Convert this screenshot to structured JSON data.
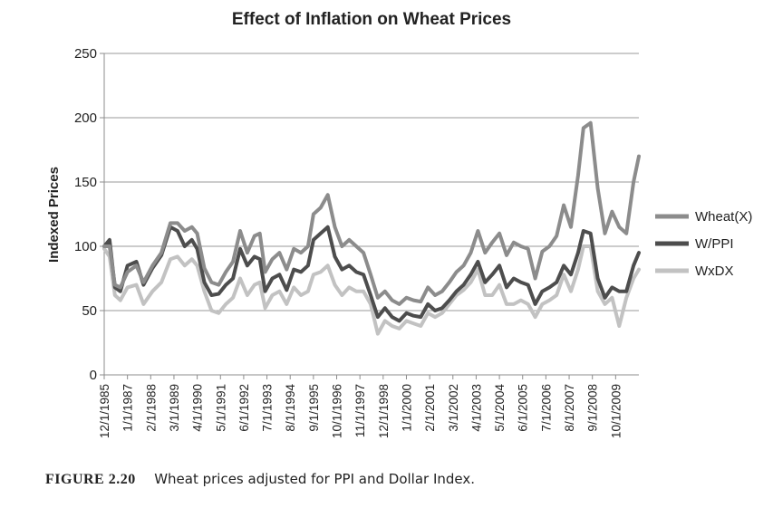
{
  "chart_data": {
    "type": "line",
    "title": "Effect of Inflation on Wheat Prices",
    "xlabel": "",
    "ylabel": "Indexed Prices",
    "ylim": [
      0,
      250
    ],
    "yticks": [
      0,
      50,
      100,
      150,
      200,
      250
    ],
    "grid": "horizontal",
    "legend_position": "right",
    "x_tick_labels": [
      "12/1/1985",
      "1/1/1987",
      "2/1/1988",
      "3/1/1989",
      "4/1/1990",
      "5/1/1991",
      "6/1/1992",
      "7/1/1993",
      "8/1/1994",
      "9/1/1995",
      "10/1/1996",
      "11/1/1997",
      "12/1/1998",
      "1/1/2000",
      "2/1/2001",
      "3/1/2002",
      "4/1/2003",
      "5/1/2004",
      "6/1/2005",
      "7/1/2006",
      "8/1/2007",
      "9/1/2008",
      "10/1/2009"
    ],
    "x_range": [
      "1985-12",
      "2010-11"
    ],
    "series": [
      {
        "name": "Wheat(X)",
        "color": "#8c8c8c",
        "points": [
          [
            "1985-12",
            100
          ],
          [
            "1986-03",
            100
          ],
          [
            "1986-06",
            70
          ],
          [
            "1986-09",
            68
          ],
          [
            "1987-01",
            80
          ],
          [
            "1987-06",
            85
          ],
          [
            "1987-10",
            72
          ],
          [
            "1988-03",
            85
          ],
          [
            "1988-08",
            95
          ],
          [
            "1989-01",
            118
          ],
          [
            "1989-05",
            118
          ],
          [
            "1989-09",
            112
          ],
          [
            "1990-01",
            115
          ],
          [
            "1990-04",
            110
          ],
          [
            "1990-08",
            83
          ],
          [
            "1990-12",
            72
          ],
          [
            "1991-04",
            70
          ],
          [
            "1991-08",
            80
          ],
          [
            "1991-12",
            88
          ],
          [
            "1992-04",
            112
          ],
          [
            "1992-08",
            95
          ],
          [
            "1992-12",
            108
          ],
          [
            "1993-03",
            110
          ],
          [
            "1993-06",
            80
          ],
          [
            "1993-10",
            90
          ],
          [
            "1994-02",
            95
          ],
          [
            "1994-06",
            82
          ],
          [
            "1994-10",
            98
          ],
          [
            "1995-02",
            95
          ],
          [
            "1995-06",
            100
          ],
          [
            "1995-09",
            125
          ],
          [
            "1996-01",
            130
          ],
          [
            "1996-05",
            140
          ],
          [
            "1996-09",
            115
          ],
          [
            "1997-01",
            100
          ],
          [
            "1997-05",
            105
          ],
          [
            "1997-09",
            100
          ],
          [
            "1998-01",
            95
          ],
          [
            "1998-05",
            78
          ],
          [
            "1998-09",
            60
          ],
          [
            "1999-01",
            65
          ],
          [
            "1999-05",
            58
          ],
          [
            "1999-09",
            55
          ],
          [
            "2000-01",
            60
          ],
          [
            "2000-05",
            58
          ],
          [
            "2000-09",
            57
          ],
          [
            "2001-01",
            68
          ],
          [
            "2001-05",
            62
          ],
          [
            "2001-09",
            65
          ],
          [
            "2002-01",
            72
          ],
          [
            "2002-05",
            80
          ],
          [
            "2002-09",
            85
          ],
          [
            "2003-01",
            95
          ],
          [
            "2003-05",
            112
          ],
          [
            "2003-09",
            95
          ],
          [
            "2004-01",
            103
          ],
          [
            "2004-05",
            110
          ],
          [
            "2004-09",
            93
          ],
          [
            "2005-01",
            103
          ],
          [
            "2005-05",
            100
          ],
          [
            "2005-09",
            98
          ],
          [
            "2006-01",
            75
          ],
          [
            "2006-05",
            96
          ],
          [
            "2006-09",
            100
          ],
          [
            "2007-01",
            108
          ],
          [
            "2007-05",
            132
          ],
          [
            "2007-09",
            115
          ],
          [
            "2008-01",
            155
          ],
          [
            "2008-04",
            192
          ],
          [
            "2008-08",
            196
          ],
          [
            "2008-12",
            145
          ],
          [
            "2009-04",
            110
          ],
          [
            "2009-08",
            127
          ],
          [
            "2009-12",
            115
          ],
          [
            "2010-04",
            110
          ],
          [
            "2010-08",
            150
          ],
          [
            "2010-11",
            170
          ]
        ]
      },
      {
        "name": "W/PPI",
        "color": "#4d4d4d",
        "points": [
          [
            "1985-12",
            100
          ],
          [
            "1986-03",
            105
          ],
          [
            "1986-06",
            68
          ],
          [
            "1986-09",
            65
          ],
          [
            "1987-01",
            85
          ],
          [
            "1987-06",
            88
          ],
          [
            "1987-10",
            70
          ],
          [
            "1988-03",
            83
          ],
          [
            "1988-08",
            93
          ],
          [
            "1989-01",
            115
          ],
          [
            "1989-05",
            112
          ],
          [
            "1989-09",
            100
          ],
          [
            "1990-01",
            105
          ],
          [
            "1990-04",
            98
          ],
          [
            "1990-08",
            72
          ],
          [
            "1990-12",
            62
          ],
          [
            "1991-04",
            63
          ],
          [
            "1991-08",
            70
          ],
          [
            "1991-12",
            75
          ],
          [
            "1992-04",
            98
          ],
          [
            "1992-08",
            85
          ],
          [
            "1992-12",
            92
          ],
          [
            "1993-03",
            90
          ],
          [
            "1993-06",
            65
          ],
          [
            "1993-10",
            75
          ],
          [
            "1994-02",
            78
          ],
          [
            "1994-06",
            66
          ],
          [
            "1994-10",
            82
          ],
          [
            "1995-02",
            80
          ],
          [
            "1995-06",
            85
          ],
          [
            "1995-09",
            105
          ],
          [
            "1996-01",
            110
          ],
          [
            "1996-05",
            115
          ],
          [
            "1996-09",
            92
          ],
          [
            "1997-01",
            82
          ],
          [
            "1997-05",
            85
          ],
          [
            "1997-09",
            80
          ],
          [
            "1998-01",
            78
          ],
          [
            "1998-05",
            62
          ],
          [
            "1998-09",
            45
          ],
          [
            "1999-01",
            52
          ],
          [
            "1999-05",
            45
          ],
          [
            "1999-09",
            42
          ],
          [
            "2000-01",
            48
          ],
          [
            "2000-05",
            46
          ],
          [
            "2000-09",
            45
          ],
          [
            "2001-01",
            55
          ],
          [
            "2001-05",
            50
          ],
          [
            "2001-09",
            52
          ],
          [
            "2002-01",
            58
          ],
          [
            "2002-05",
            65
          ],
          [
            "2002-09",
            70
          ],
          [
            "2003-01",
            78
          ],
          [
            "2003-05",
            88
          ],
          [
            "2003-09",
            72
          ],
          [
            "2004-01",
            78
          ],
          [
            "2004-05",
            85
          ],
          [
            "2004-09",
            68
          ],
          [
            "2005-01",
            75
          ],
          [
            "2005-05",
            72
          ],
          [
            "2005-09",
            70
          ],
          [
            "2006-01",
            55
          ],
          [
            "2006-05",
            65
          ],
          [
            "2006-09",
            68
          ],
          [
            "2007-01",
            72
          ],
          [
            "2007-05",
            85
          ],
          [
            "2007-09",
            78
          ],
          [
            "2008-01",
            95
          ],
          [
            "2008-04",
            112
          ],
          [
            "2008-08",
            110
          ],
          [
            "2008-12",
            75
          ],
          [
            "2009-04",
            60
          ],
          [
            "2009-08",
            68
          ],
          [
            "2009-12",
            65
          ],
          [
            "2010-04",
            65
          ],
          [
            "2010-08",
            85
          ],
          [
            "2010-11",
            95
          ]
        ]
      },
      {
        "name": "WxDX",
        "color": "#c2c2c2",
        "points": [
          [
            "1985-12",
            98
          ],
          [
            "1986-03",
            92
          ],
          [
            "1986-06",
            62
          ],
          [
            "1986-09",
            58
          ],
          [
            "1987-01",
            68
          ],
          [
            "1987-06",
            70
          ],
          [
            "1987-10",
            55
          ],
          [
            "1988-03",
            65
          ],
          [
            "1988-08",
            72
          ],
          [
            "1989-01",
            90
          ],
          [
            "1989-05",
            92
          ],
          [
            "1989-09",
            85
          ],
          [
            "1990-01",
            90
          ],
          [
            "1990-04",
            85
          ],
          [
            "1990-08",
            65
          ],
          [
            "1990-12",
            50
          ],
          [
            "1991-04",
            48
          ],
          [
            "1991-08",
            55
          ],
          [
            "1991-12",
            60
          ],
          [
            "1992-04",
            75
          ],
          [
            "1992-08",
            62
          ],
          [
            "1992-12",
            70
          ],
          [
            "1993-03",
            72
          ],
          [
            "1993-06",
            52
          ],
          [
            "1993-10",
            62
          ],
          [
            "1994-02",
            65
          ],
          [
            "1994-06",
            55
          ],
          [
            "1994-10",
            68
          ],
          [
            "1995-02",
            62
          ],
          [
            "1995-06",
            65
          ],
          [
            "1995-09",
            78
          ],
          [
            "1996-01",
            80
          ],
          [
            "1996-05",
            85
          ],
          [
            "1996-09",
            70
          ],
          [
            "1997-01",
            62
          ],
          [
            "1997-05",
            68
          ],
          [
            "1997-09",
            65
          ],
          [
            "1998-01",
            65
          ],
          [
            "1998-05",
            55
          ],
          [
            "1998-09",
            32
          ],
          [
            "1999-01",
            42
          ],
          [
            "1999-05",
            38
          ],
          [
            "1999-09",
            36
          ],
          [
            "2000-01",
            42
          ],
          [
            "2000-05",
            40
          ],
          [
            "2000-09",
            38
          ],
          [
            "2001-01",
            48
          ],
          [
            "2001-05",
            45
          ],
          [
            "2001-09",
            48
          ],
          [
            "2002-01",
            55
          ],
          [
            "2002-05",
            62
          ],
          [
            "2002-09",
            66
          ],
          [
            "2003-01",
            72
          ],
          [
            "2003-05",
            82
          ],
          [
            "2003-09",
            62
          ],
          [
            "2004-01",
            62
          ],
          [
            "2004-05",
            70
          ],
          [
            "2004-09",
            55
          ],
          [
            "2005-01",
            55
          ],
          [
            "2005-05",
            58
          ],
          [
            "2005-09",
            55
          ],
          [
            "2006-01",
            45
          ],
          [
            "2006-05",
            55
          ],
          [
            "2006-09",
            58
          ],
          [
            "2007-01",
            62
          ],
          [
            "2007-05",
            78
          ],
          [
            "2007-09",
            65
          ],
          [
            "2008-01",
            82
          ],
          [
            "2008-04",
            100
          ],
          [
            "2008-08",
            100
          ],
          [
            "2008-12",
            65
          ],
          [
            "2009-04",
            55
          ],
          [
            "2009-08",
            60
          ],
          [
            "2009-12",
            38
          ],
          [
            "2010-04",
            60
          ],
          [
            "2010-08",
            75
          ],
          [
            "2010-11",
            82
          ]
        ]
      }
    ]
  },
  "caption": {
    "label": "FIGURE 2.20",
    "text": "Wheat prices adjusted for PPI and Dollar Index."
  }
}
